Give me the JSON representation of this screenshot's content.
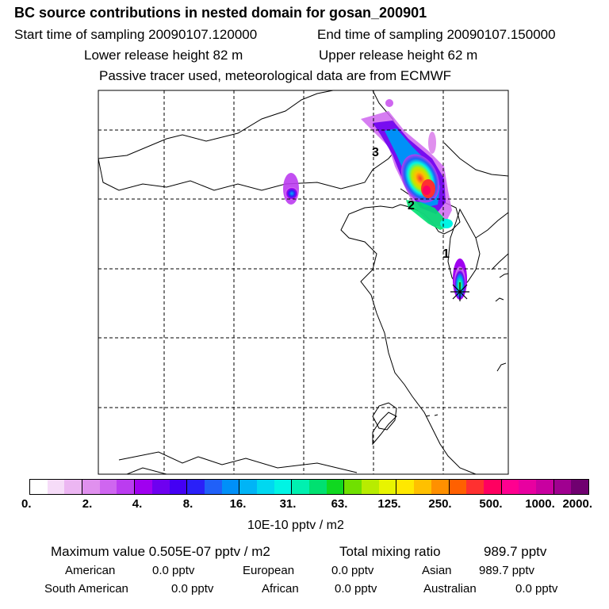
{
  "header": {
    "title": "BC  source contributions in nested domain for gosan_200901",
    "start_sampling": "Start time of sampling 20090107.120000",
    "end_sampling": "End time of sampling 20090107.150000",
    "lower_release": "Lower release height   82 m",
    "upper_release": "Upper release height   62 m",
    "tracer_note": "Passive tracer used, meteorological data are from ECMWF"
  },
  "map": {
    "markers": [
      "1",
      "2",
      "3"
    ],
    "receptor_icon": "star-icon"
  },
  "colorbar": {
    "tick_labels": [
      "0.",
      "2.",
      "4.",
      "8.",
      "16.",
      "31.",
      "63.",
      "125.",
      "250.",
      "500.",
      "1000.",
      "2000."
    ],
    "unit": "10E-10 pptv / m2",
    "colors": [
      "#ffffff",
      "#f6dcf8",
      "#ecb6f2",
      "#e090ee",
      "#cf66f0",
      "#bb3cf0",
      "#a000f0",
      "#6e00f0",
      "#4400f4",
      "#2a20f8",
      "#2060f8",
      "#0090f8",
      "#00b4f6",
      "#00d8f0",
      "#00f4e4",
      "#00f0b0",
      "#00e070",
      "#10d820",
      "#70e000",
      "#b8ec00",
      "#e8f400",
      "#ffe800",
      "#ffc000",
      "#ff9000",
      "#ff6000",
      "#ff3030",
      "#ff0060",
      "#ff0090",
      "#e800a0",
      "#c800a0",
      "#a00090",
      "#700070"
    ]
  },
  "summary": {
    "max_label": "Maximum value  0.505E-07 pptv / m2",
    "total_label": "Total mixing ratio",
    "total_value": "989.7 pptv",
    "rows": [
      [
        {
          "label": "American",
          "value": "0.0 pptv"
        },
        {
          "label": "European",
          "value": "0.0 pptv"
        },
        {
          "label": "Asian",
          "value": "989.7 pptv"
        }
      ],
      [
        {
          "label": "South American",
          "value": "0.0 pptv"
        },
        {
          "label": "African",
          "value": "0.0 pptv"
        },
        {
          "label": "Australian",
          "value": "0.0 pptv"
        }
      ]
    ]
  }
}
